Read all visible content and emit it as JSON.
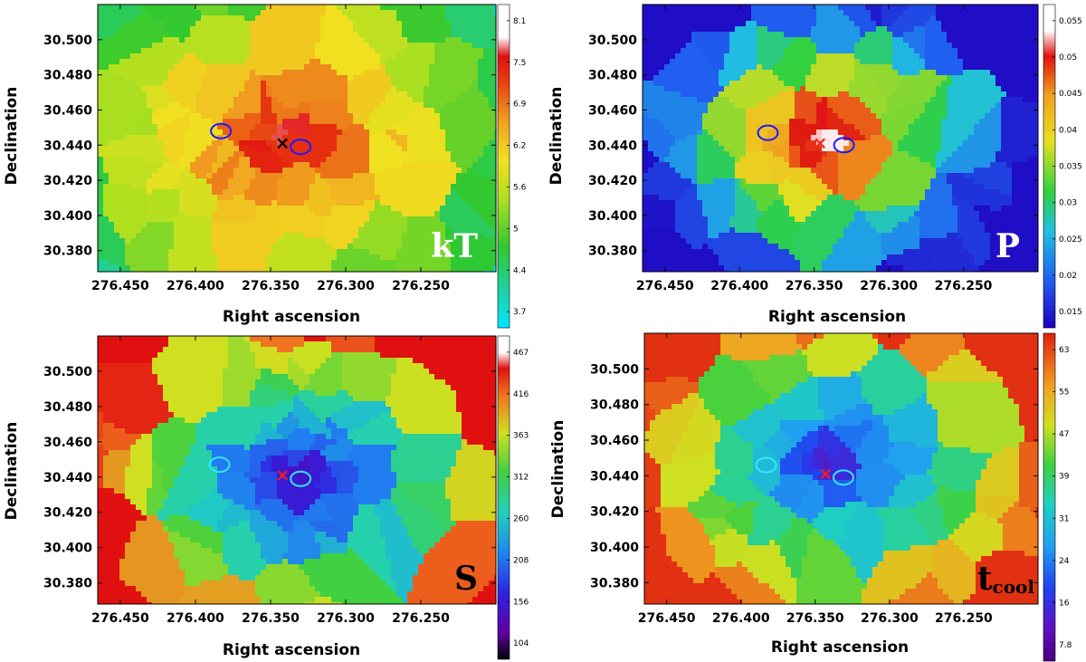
{
  "chart_data": [
    {
      "type": "heatmap",
      "title": "",
      "xlabel": "Right ascension",
      "ylabel": "Declination",
      "panel_label": "kT",
      "panel_label_sub": "",
      "panel_label_color": "#ffffff",
      "x_ticks": [
        "276.450",
        "276.400",
        "276.350",
        "276.300",
        "276.250"
      ],
      "y_ticks": [
        "30.500",
        "30.480",
        "30.460",
        "30.440",
        "30.420",
        "30.400",
        "30.380"
      ],
      "colorbar_ticks": [
        "8.1",
        "7.5",
        "6.9",
        "6.2",
        "5.6",
        "5",
        "4.4",
        "3.7"
      ],
      "colorbar_colormap": "rainbow-white-top",
      "marker": {
        "symbol": "x",
        "color": "#000000",
        "ra": 276.342,
        "dec": 30.441
      },
      "ellipses": [
        {
          "ra": 276.383,
          "dec": 30.448,
          "color": "#1a1aff"
        },
        {
          "ra": 276.33,
          "dec": 30.439,
          "color": "#1a1aff"
        }
      ],
      "background_bins": "voronoi",
      "hot_core_ra": 276.345,
      "hot_core_dec": 30.448
    },
    {
      "type": "heatmap",
      "title": "",
      "xlabel": "Right ascension",
      "ylabel": "Declination",
      "panel_label": "P",
      "panel_label_sub": "",
      "panel_label_color": "#ffffff",
      "x_ticks": [
        "276.450",
        "276.400",
        "276.350",
        "276.300",
        "276.250"
      ],
      "y_ticks": [
        "30.500",
        "30.480",
        "30.460",
        "30.440",
        "30.420",
        "30.400",
        "30.380"
      ],
      "colorbar_ticks": [
        "0.055",
        "0.05",
        "0.045",
        "0.04",
        "0.035",
        "0.03",
        "0.025",
        "0.02",
        "0.015"
      ],
      "colorbar_colormap": "rainbow-white-top",
      "marker": {
        "symbol": "x",
        "color": "#ff1a1a",
        "ra": 276.346,
        "dec": 30.441
      },
      "ellipses": [
        {
          "ra": 276.381,
          "dec": 30.447,
          "color": "#1a1aff"
        },
        {
          "ra": 276.33,
          "dec": 30.44,
          "color": "#1a1aff"
        }
      ],
      "background_bins": "voronoi"
    },
    {
      "type": "heatmap",
      "title": "",
      "xlabel": "Right ascension",
      "ylabel": "Declination",
      "panel_label": "S",
      "panel_label_sub": "",
      "panel_label_color": "#000000",
      "x_ticks": [
        "276.450",
        "276.400",
        "276.350",
        "276.300",
        "276.250"
      ],
      "y_ticks": [
        "30.500",
        "30.480",
        "30.460",
        "30.440",
        "30.420",
        "30.400",
        "30.380"
      ],
      "colorbar_ticks": [
        "467",
        "416",
        "363",
        "312",
        "260",
        "208",
        "156",
        "104"
      ],
      "colorbar_colormap": "rainbow-white-top",
      "marker": {
        "symbol": "x",
        "color": "#ff1a1a",
        "ra": 276.342,
        "dec": 30.441
      },
      "ellipses": [
        {
          "ra": 276.384,
          "dec": 30.447,
          "color": "#33e6ff"
        },
        {
          "ra": 276.33,
          "dec": 30.439,
          "color": "#33e6ff"
        }
      ],
      "background_bins": "voronoi"
    },
    {
      "type": "heatmap",
      "title": "",
      "xlabel": "Right ascension",
      "ylabel": "Declination",
      "panel_label": "t",
      "panel_label_sub": "cool",
      "panel_label_color": "#000000",
      "x_ticks": [
        "276.450",
        "276.400",
        "276.350",
        "276.300",
        "276.250"
      ],
      "y_ticks": [
        "30.500",
        "30.480",
        "30.460",
        "30.440",
        "30.420",
        "30.400",
        "30.380"
      ],
      "colorbar_ticks": [
        "63",
        "55",
        "47",
        "39",
        "31",
        "24",
        "16",
        "7.8"
      ],
      "colorbar_colormap": "rainbow",
      "marker": {
        "symbol": "x",
        "color": "#ff1a1a",
        "ra": 276.343,
        "dec": 30.441
      },
      "ellipses": [
        {
          "ra": 276.383,
          "dec": 30.446,
          "color": "#33e6ff"
        },
        {
          "ra": 276.331,
          "dec": 30.439,
          "color": "#33e6ff"
        }
      ],
      "background_bins": "voronoi"
    }
  ],
  "colors": {
    "kT": {
      "center": "#dd1a10",
      "mid": "#f07a20",
      "outer": "#c8e020",
      "edge": "#40c840"
    },
    "P": {
      "center": "#ffffff",
      "mid": "#f0c020",
      "outer": "#2060f0",
      "edge": "#5a10c8"
    },
    "S": {
      "center": "#4a10c0",
      "mid": "#1a50f0",
      "outer": "#40d040",
      "edge": "#e84020"
    },
    "tcool": {
      "center": "#5a10b0",
      "mid": "#1a40f0",
      "outer": "#20d0c0",
      "edge": "#e8d020"
    }
  }
}
